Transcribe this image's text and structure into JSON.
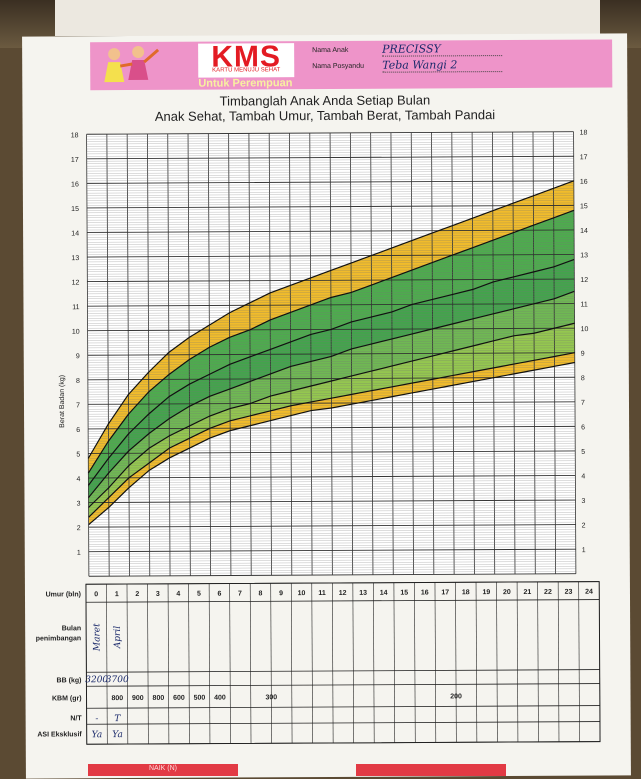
{
  "header": {
    "kms_title": "KMS",
    "kms_subtitle": "KARTU MENUJU SEHAT",
    "gender_label": "Untuk Perempuan",
    "child_name_label": "Nama Anak",
    "child_name_value": "PRECISSY",
    "posyandu_label": "Nama Posyandu",
    "posyandu_value": "Teba Wangi 2"
  },
  "title_line1": "Timbanglah Anak Anda Setiap Bulan",
  "title_line2": "Anak Sehat, Tambah Umur, Tambah Berat, Tambah Pandai",
  "chart_data": {
    "type": "area",
    "ylabel": "Berat Badan (kg)",
    "xlabel": "Umur (bln)",
    "x": [
      0,
      1,
      2,
      3,
      4,
      5,
      6,
      7,
      8,
      9,
      10,
      11,
      12,
      13,
      14,
      15,
      16,
      17,
      18,
      19,
      20,
      21,
      22,
      23,
      24
    ],
    "ylim": [
      0,
      18
    ],
    "y_ticks": [
      1,
      2,
      3,
      4,
      5,
      6,
      7,
      8,
      9,
      10,
      11,
      12,
      13,
      14,
      15,
      16,
      17,
      18
    ],
    "grid": true,
    "series": [
      {
        "values": [
          2.1,
          2.8,
          3.6,
          4.3,
          4.8,
          5.2,
          5.6,
          5.9,
          6.1,
          6.3,
          6.5,
          6.7,
          6.8,
          6.95,
          7.1,
          7.25,
          7.4,
          7.55,
          7.7,
          7.85,
          8.0,
          8.15,
          8.3,
          8.45,
          8.6
        ],
        "color": "#f0b514"
      },
      {
        "values": [
          2.4,
          3.2,
          4.0,
          4.6,
          5.2,
          5.6,
          6.0,
          6.3,
          6.5,
          6.7,
          6.9,
          7.05,
          7.2,
          7.35,
          7.5,
          7.65,
          7.8,
          7.95,
          8.1,
          8.25,
          8.4,
          8.55,
          8.7,
          8.85,
          9.0
        ],
        "color": "#88c13c"
      },
      {
        "values": [
          2.8,
          3.6,
          4.5,
          5.2,
          5.7,
          6.1,
          6.5,
          6.8,
          7.0,
          7.3,
          7.5,
          7.7,
          7.9,
          8.1,
          8.3,
          8.5,
          8.7,
          8.9,
          9.1,
          9.3,
          9.5,
          9.7,
          9.8,
          10.0,
          10.2
        ],
        "color": "#5fb040"
      },
      {
        "values": [
          3.2,
          4.2,
          5.1,
          5.8,
          6.4,
          6.9,
          7.3,
          7.6,
          7.9,
          8.2,
          8.5,
          8.7,
          8.9,
          9.2,
          9.4,
          9.6,
          9.8,
          10.0,
          10.2,
          10.4,
          10.6,
          10.8,
          11.0,
          11.2,
          11.5
        ],
        "color": "#2f9a38"
      },
      {
        "values": [
          3.7,
          4.8,
          5.8,
          6.6,
          7.3,
          7.8,
          8.2,
          8.6,
          8.9,
          9.2,
          9.5,
          9.8,
          10.0,
          10.3,
          10.5,
          10.7,
          11.0,
          11.2,
          11.4,
          11.6,
          11.9,
          12.1,
          12.3,
          12.5,
          12.8
        ],
        "color": "#3aa33a"
      },
      {
        "values": [
          4.2,
          5.5,
          6.6,
          7.5,
          8.2,
          8.8,
          9.3,
          9.7,
          10.0,
          10.4,
          10.7,
          11.0,
          11.3,
          11.5,
          11.8,
          12.1,
          12.4,
          12.7,
          13.0,
          13.3,
          13.6,
          13.9,
          14.2,
          14.5,
          14.8
        ],
        "color": "#f0b514"
      },
      {
        "values": [
          4.8,
          6.2,
          7.4,
          8.3,
          9.1,
          9.7,
          10.2,
          10.7,
          11.1,
          11.5,
          11.8,
          12.1,
          12.4,
          12.7,
          13.0,
          13.3,
          13.6,
          13.9,
          14.2,
          14.5,
          14.8,
          15.1,
          15.4,
          15.7,
          16.0
        ]
      }
    ]
  },
  "table": {
    "age_label": "Umur (bln)",
    "month_label_line1": "Bulan",
    "month_label_line2": "penimbangan",
    "months": [
      "Maret",
      "April"
    ],
    "bb_label": "BB (kg)",
    "bb_values": [
      "3200",
      "3700"
    ],
    "kbm_label": "KBM (gr)",
    "kbm_values": [
      "800",
      "900",
      "800",
      "600",
      "500",
      "400",
      "300",
      "200"
    ],
    "nt_label": "N/T",
    "nt_values": [
      "-",
      "T"
    ],
    "asi_label": "ASI Eksklusif",
    "asi_values": [
      "Ya",
      "Ya"
    ]
  },
  "footer": {
    "naik_label": "NAIK (N)"
  }
}
